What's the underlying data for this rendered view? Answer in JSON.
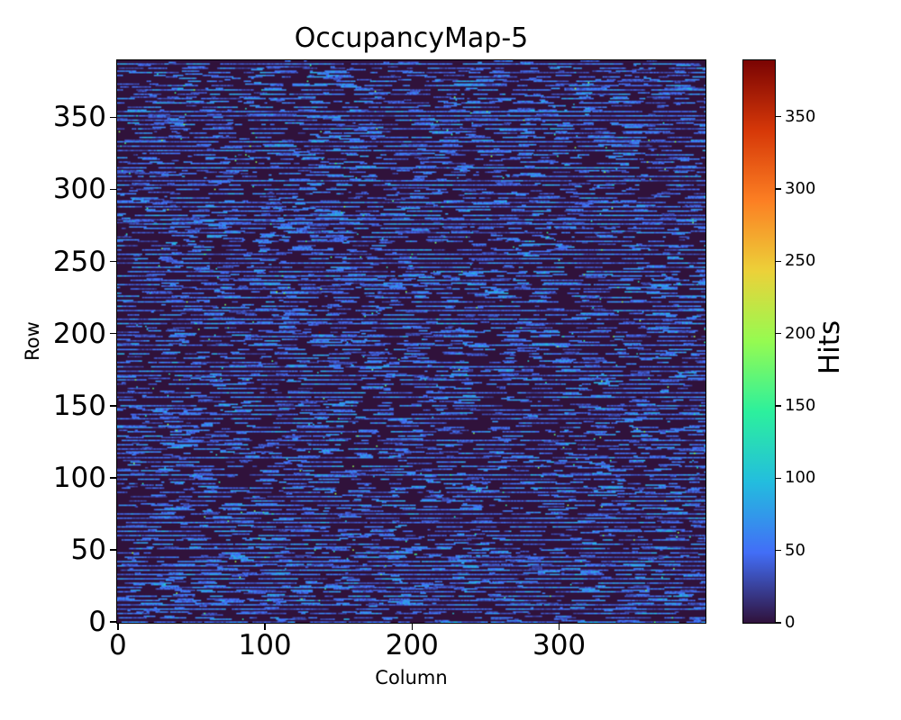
{
  "figure": {
    "title": "OccupancyMap-5",
    "background_color": "#ffffff",
    "text_color": "#000000",
    "axes": {
      "xlabel": "Column",
      "ylabel": "Row",
      "x_tick_labels": [
        "0",
        "100",
        "200",
        "300"
      ],
      "x_tick_values": [
        0,
        100,
        200,
        300
      ],
      "y_tick_labels": [
        "0",
        "50",
        "100",
        "150",
        "200",
        "250",
        "300",
        "350"
      ],
      "y_tick_values": [
        0,
        50,
        100,
        150,
        200,
        250,
        300,
        350
      ]
    },
    "colorbar": {
      "label": "Hits",
      "tick_labels": [
        "0",
        "50",
        "100",
        "150",
        "200",
        "250",
        "300",
        "350"
      ],
      "tick_values": [
        0,
        50,
        100,
        150,
        200,
        250,
        300,
        350
      ]
    }
  },
  "chart_data": {
    "type": "heatmap",
    "title": "OccupancyMap-5",
    "xlabel": "Column",
    "ylabel": "Row",
    "colorbar_label": "Hits",
    "cols": 400,
    "rows": 390,
    "xlim": [
      0,
      400
    ],
    "ylim": [
      0,
      390
    ],
    "vmin": 0,
    "vmax": 389,
    "colormap": "turbo",
    "colormap_stops": [
      [
        0.0,
        "#30123b"
      ],
      [
        0.125,
        "#426ef7"
      ],
      [
        0.25,
        "#23bdde"
      ],
      [
        0.375,
        "#2cf09d"
      ],
      [
        0.5,
        "#95fb51"
      ],
      [
        0.625,
        "#ecd139"
      ],
      [
        0.75,
        "#fc7f23"
      ],
      [
        0.875,
        "#d63808"
      ],
      [
        1.0,
        "#7a0403"
      ]
    ],
    "grid": false,
    "legend": false,
    "pattern": {
      "description": "Occupancy hit-map: near-zero dark background with horizontal dashed streaks of low hit counts (~25-75 hits), streak density repeating with a 3-row period; rare brighter specks (90-200 hits); single maximum pixel of 389 hits.",
      "seed": 5,
      "background_value": 0,
      "row_period_coverage": [
        0.62,
        0.18,
        0.06
      ],
      "dash_length_range": [
        2,
        16
      ],
      "dash_value_range": [
        25,
        75
      ],
      "gap_length_range": [
        1,
        11
      ],
      "speck_probability": 0.002,
      "speck_value_range": [
        90,
        200
      ],
      "max_hit": 389,
      "max_hit_cell": [
        201,
        137
      ]
    }
  }
}
